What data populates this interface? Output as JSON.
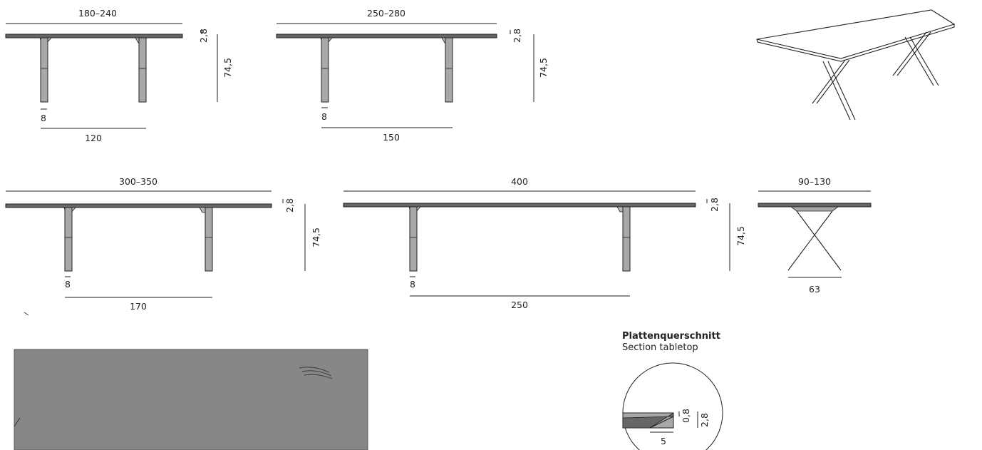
{
  "diagram_labels": {
    "top_width_a": "180–240",
    "top_width_b": "250–280",
    "top_width_c": "300–350",
    "top_width_d": "400",
    "top_width_side": "90–130",
    "thickness": "2,8",
    "height": "74,5",
    "leg_size": "8",
    "leg_span_a": "120",
    "leg_span_b": "150",
    "leg_span_c": "170",
    "leg_span_d": "250",
    "leg_span_side": "63"
  },
  "section": {
    "title": "Plattenquerschnitt",
    "subtitle": "Section tabletop",
    "edge_thickness": "0,8",
    "total_thickness": "2,8",
    "bevel_depth": "5"
  },
  "colors": {
    "line": "#222222",
    "leg_fill": "#a8a8a8",
    "top_swatch": "#878787",
    "top_edge": "#555555"
  }
}
